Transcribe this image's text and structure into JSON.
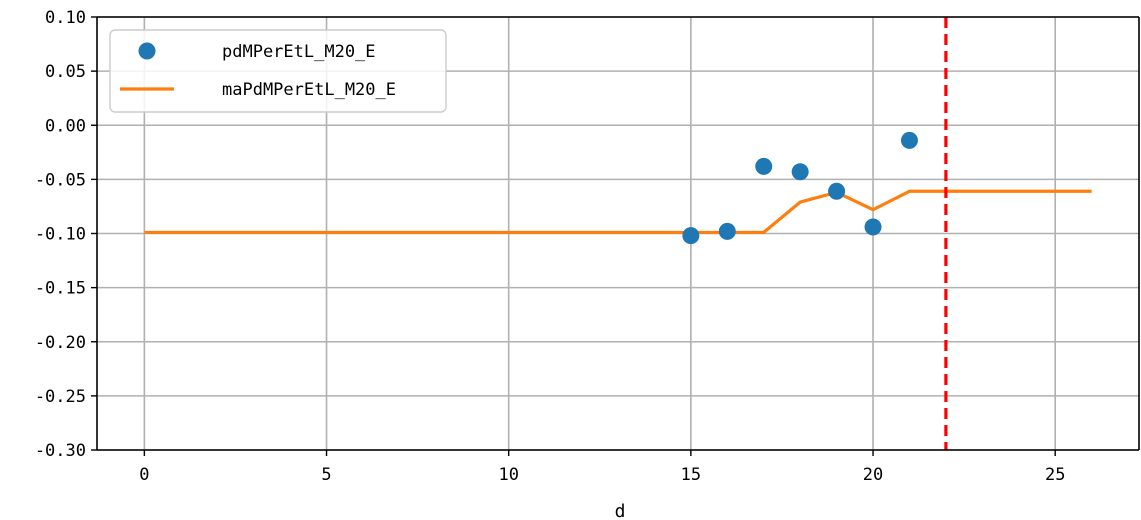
{
  "chart_data": {
    "type": "line",
    "title": "",
    "xlabel": "d",
    "ylabel": "",
    "xlim": [
      -1.3,
      27.3
    ],
    "ylim": [
      -0.3,
      0.1
    ],
    "xticks": [
      0,
      5,
      10,
      15,
      20,
      25
    ],
    "xtick_labels": [
      "0",
      "5",
      "10",
      "15",
      "20",
      "25"
    ],
    "yticks": [
      0.1,
      0.05,
      0.0,
      -0.05,
      -0.1,
      -0.15,
      -0.2,
      -0.25,
      -0.3
    ],
    "ytick_labels": [
      "0.10",
      "0.05",
      "0.00",
      "-0.05",
      "-0.10",
      "-0.15",
      "-0.20",
      "-0.25",
      "-0.30"
    ],
    "grid": true,
    "legend": {
      "placement": "top-left"
    },
    "series": [
      {
        "name": "pdMPerEtL_M20_E",
        "kind": "scatter",
        "color": "#1f77b4",
        "x": [
          15,
          16,
          17,
          18,
          19,
          20,
          21
        ],
        "y": [
          -0.102,
          -0.098,
          -0.038,
          -0.043,
          -0.061,
          -0.094,
          -0.014
        ]
      },
      {
        "name": "maPdMPerEtL_M20_E",
        "kind": "line",
        "color": "#ff7f0e",
        "x": [
          0,
          17,
          18,
          19,
          20,
          21,
          26
        ],
        "y": [
          -0.099,
          -0.099,
          -0.071,
          -0.062,
          -0.078,
          -0.061,
          -0.061
        ]
      }
    ],
    "annotations": [
      {
        "type": "vline",
        "x": 22,
        "color": "#ff0000",
        "style": "dashed"
      }
    ]
  }
}
